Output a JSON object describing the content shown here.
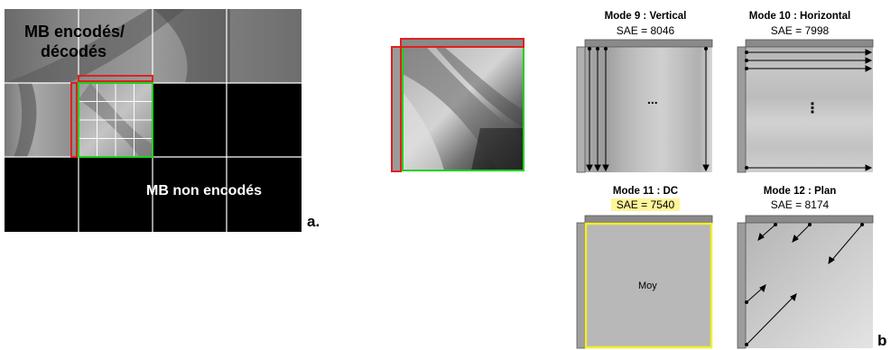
{
  "panel_a": {
    "encoded_label_line1": "MB encodés/",
    "encoded_label_line2": "décodés",
    "non_encoded_label": "MB non encodés",
    "letter": "a."
  },
  "panel_b": {
    "letter": "b",
    "modes": [
      {
        "title": "Mode 9 : Vertical",
        "sae": "SAE = 8046",
        "ellipsis": "...",
        "highlighted": false
      },
      {
        "title": "Mode 10 : Horizontal",
        "sae": "SAE = 7998",
        "ellipsis": "⋮",
        "highlighted": false
      },
      {
        "title": "Mode 11 : DC",
        "sae": "SAE = 7540",
        "center_label": "Moy",
        "highlighted": true
      },
      {
        "title": "Mode 12 : Plan",
        "sae": "SAE = 8174",
        "highlighted": false
      }
    ]
  },
  "colors": {
    "red": "#e02020",
    "green": "#1fd01f",
    "yellow": "#f2ee2a",
    "highlight": "#fff59a"
  }
}
